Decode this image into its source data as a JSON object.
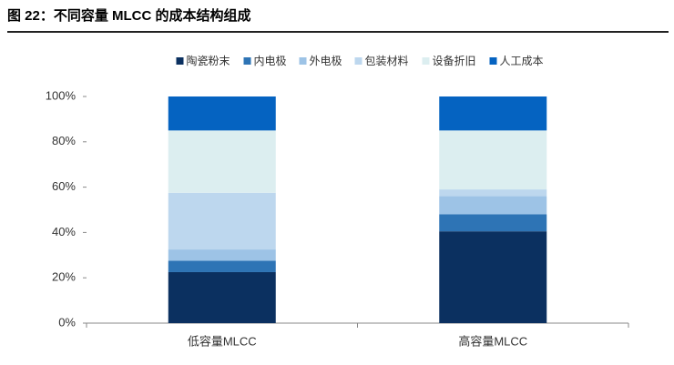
{
  "chart_data": {
    "type": "stacked_bar",
    "title": "图 22：不同容量 MLCC 的成本结构组成",
    "categories": [
      "低容量MLCC",
      "高容量MLCC"
    ],
    "series": [
      {
        "name": "陶瓷粉末",
        "color": "#0b3060",
        "values": [
          22.5,
          40.5
        ]
      },
      {
        "name": "内电极",
        "color": "#2e74b5",
        "values": [
          5,
          7.5
        ]
      },
      {
        "name": "外电极",
        "color": "#9dc3e6",
        "values": [
          5,
          8
        ]
      },
      {
        "name": "包装材料",
        "color": "#bdd7ee",
        "values": [
          25,
          3
        ]
      },
      {
        "name": "设备折旧",
        "color": "#dceef0",
        "values": [
          27.5,
          26
        ]
      },
      {
        "name": "人工成本",
        "color": "#0563c1",
        "values": [
          15,
          15
        ]
      }
    ],
    "ylim": [
      0,
      100
    ],
    "yticks": [
      {
        "value": 0,
        "label": "0%"
      },
      {
        "value": 20,
        "label": "20%"
      },
      {
        "value": 40,
        "label": "40%"
      },
      {
        "value": 60,
        "label": "60%"
      },
      {
        "value": 80,
        "label": "80%"
      },
      {
        "value": 100,
        "label": "100%"
      }
    ],
    "grid": false,
    "legend": "top"
  }
}
